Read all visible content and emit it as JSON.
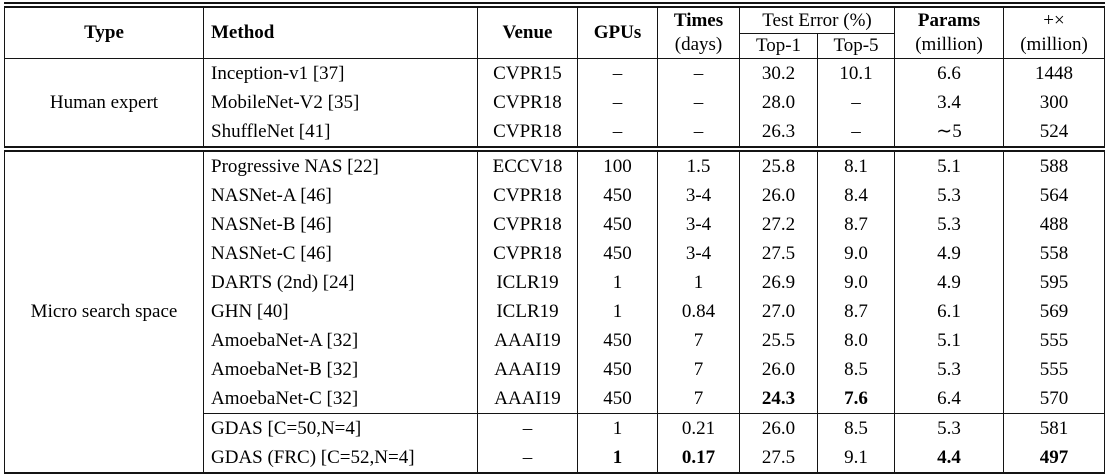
{
  "page": {
    "background": "#ffffff",
    "text_color": "#000000",
    "rule_color": "#141414"
  },
  "table": {
    "header": {
      "type": "Type",
      "method": "Method",
      "venue": "Venue",
      "gpus": "GPUs",
      "times": {
        "line1": "Times",
        "line2": "(days)"
      },
      "test_error": "Test Error (%)",
      "top1": "Top-1",
      "top5": "Top-5",
      "params": {
        "line1": "Params",
        "line2": "(million)"
      },
      "flops": {
        "line1": "+×",
        "line2": "(million)"
      }
    },
    "groups": [
      {
        "type": "Human expert",
        "rows": [
          {
            "method": "Inception-v1 [37]",
            "venue": "CVPR15",
            "gpus": "–",
            "times": "–",
            "top1": "30.2",
            "top5": "10.1",
            "params": "6.6",
            "flops": "1448"
          },
          {
            "method": "MobileNet-V2 [35]",
            "venue": "CVPR18",
            "gpus": "–",
            "times": "–",
            "top1": "28.0",
            "top5": "–",
            "params": "3.4",
            "flops": "300"
          },
          {
            "method": "ShuffleNet [41]",
            "venue": "CVPR18",
            "gpus": "–",
            "times": "–",
            "top1": "26.3",
            "top5": "–",
            "params": "∼5",
            "flops": "524"
          }
        ]
      },
      {
        "type": "Micro search space",
        "rows": [
          {
            "method": "Progressive NAS [22]",
            "venue": "ECCV18",
            "gpus": "100",
            "times": "1.5",
            "top1": "25.8",
            "top5": "8.1",
            "params": "5.1",
            "flops": "588"
          },
          {
            "method": "NASNet-A [46]",
            "venue": "CVPR18",
            "gpus": "450",
            "times": "3-4",
            "top1": "26.0",
            "top5": "8.4",
            "params": "5.3",
            "flops": "564"
          },
          {
            "method": "NASNet-B [46]",
            "venue": "CVPR18",
            "gpus": "450",
            "times": "3-4",
            "top1": "27.2",
            "top5": "8.7",
            "params": "5.3",
            "flops": "488"
          },
          {
            "method": "NASNet-C [46]",
            "venue": "CVPR18",
            "gpus": "450",
            "times": "3-4",
            "top1": "27.5",
            "top5": "9.0",
            "params": "4.9",
            "flops": "558"
          },
          {
            "method": "DARTS (2nd) [24]",
            "venue": "ICLR19",
            "gpus": "1",
            "times": "1",
            "top1": "26.9",
            "top5": "9.0",
            "params": "4.9",
            "flops": "595"
          },
          {
            "method": "GHN [40]",
            "venue": "ICLR19",
            "gpus": "1",
            "times": "0.84",
            "top1": "27.0",
            "top5": "8.7",
            "params": "6.1",
            "flops": "569"
          },
          {
            "method": "AmoebaNet-A [32]",
            "venue": "AAAI19",
            "gpus": "450",
            "times": "7",
            "top1": "25.5",
            "top5": "8.0",
            "params": "5.1",
            "flops": "555"
          },
          {
            "method": "AmoebaNet-B [32]",
            "venue": "AAAI19",
            "gpus": "450",
            "times": "7",
            "top1": "26.0",
            "top5": "8.5",
            "params": "5.3",
            "flops": "555"
          },
          {
            "method": "AmoebaNet-C [32]",
            "venue": "AAAI19",
            "gpus": "450",
            "times": "7",
            "top1": "24.3",
            "top5": "7.6",
            "params": "6.4",
            "flops": "570",
            "bold": [
              "top1",
              "top5"
            ]
          },
          {
            "method": "GDAS [C=50,N=4]",
            "venue": "–",
            "gpus": "1",
            "times": "0.21",
            "top1": "26.0",
            "top5": "8.5",
            "params": "5.3",
            "flops": "581",
            "rule_above": true
          },
          {
            "method": "GDAS (FRC) [C=52,N=4]",
            "venue": "–",
            "gpus": "1",
            "times": "0.17",
            "top1": "27.5",
            "top5": "9.1",
            "params": "4.4",
            "flops": "497",
            "bold": [
              "gpus",
              "times",
              "params",
              "flops"
            ]
          }
        ]
      }
    ]
  }
}
